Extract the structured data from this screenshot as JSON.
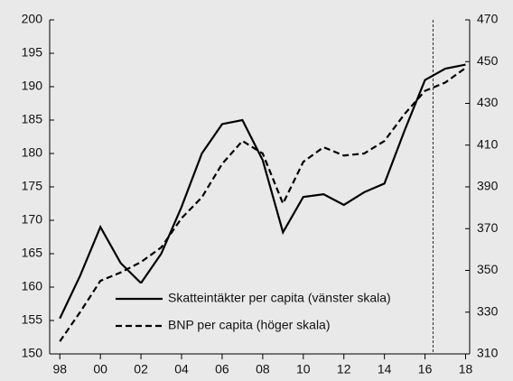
{
  "chart_data": {
    "type": "line",
    "x": [
      1998,
      1999,
      2000,
      2001,
      2002,
      2003,
      2004,
      2005,
      2006,
      2007,
      2008,
      2009,
      2010,
      2011,
      2012,
      2013,
      2014,
      2015,
      2016,
      2017,
      2018
    ],
    "series": [
      {
        "name": "Skatteintäkter per capita (vänster skala)",
        "color": "#000000",
        "line_style": "solid",
        "values": [
          155.3,
          161.7,
          169,
          163.6,
          160.6,
          165,
          172,
          180,
          184.4,
          185,
          179,
          168.2,
          173.5,
          173.9,
          172.3,
          174.2,
          175.5,
          183.5,
          191,
          192.7,
          193.3
        ]
      },
      {
        "name": "BNP per capita (höger skala)",
        "color": "#000000",
        "line_style": "dashed",
        "axis": "y2",
        "values": [
          316,
          330,
          345,
          349,
          354,
          361,
          375,
          385,
          401,
          412,
          406,
          382,
          402,
          409,
          405,
          406,
          412,
          425,
          436,
          440,
          447
        ]
      }
    ],
    "xlim": [
      1997.5,
      2018.2
    ],
    "xticks": [
      {
        "value": 1998,
        "label": "98"
      },
      {
        "value": 2000,
        "label": "00"
      },
      {
        "value": 2002,
        "label": "02"
      },
      {
        "value": 2004,
        "label": "04"
      },
      {
        "value": 2006,
        "label": "06"
      },
      {
        "value": 2008,
        "label": "08"
      },
      {
        "value": 2010,
        "label": "10"
      },
      {
        "value": 2012,
        "label": "12"
      },
      {
        "value": 2014,
        "label": "14"
      },
      {
        "value": 2016,
        "label": "16"
      },
      {
        "value": 2018,
        "label": "18"
      }
    ],
    "ylim": [
      150,
      200
    ],
    "yticks": [
      150,
      155,
      160,
      165,
      170,
      175,
      180,
      185,
      190,
      195,
      200
    ],
    "y2lim": [
      310,
      470
    ],
    "y2ticks": [
      310,
      330,
      350,
      370,
      390,
      410,
      430,
      450,
      470
    ],
    "vline": 2016.4,
    "grid": false
  }
}
